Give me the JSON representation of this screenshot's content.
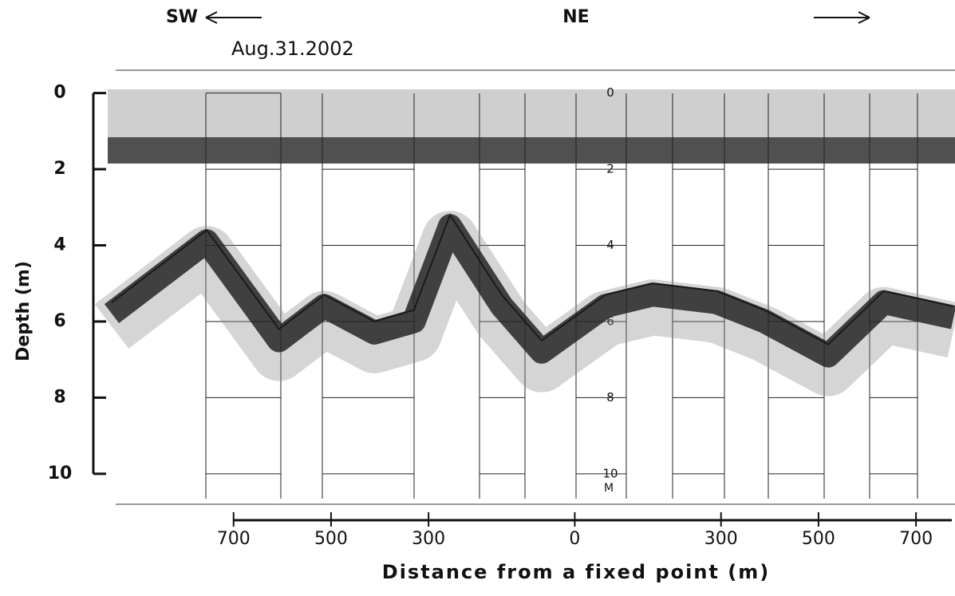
{
  "chart_data": {
    "type": "line",
    "title": "Aug.31.2002",
    "left_direction": "SW",
    "right_direction": "NE",
    "x_label": "Distance from a fixed point (m)",
    "y_label": "Depth (m)",
    "depth_unit": "M",
    "x": [
      -950,
      -755,
      -607,
      -514,
      -411,
      -330,
      -256,
      -150,
      -68,
      63,
      160,
      291,
      389,
      520,
      634,
      777
    ],
    "series": [
      {
        "color": "#1a1a1a",
        "values": [
          5.5,
          3.6,
          6.2,
          5.3,
          6.0,
          5.7,
          3.2,
          5.3,
          6.5,
          5.3,
          5.0,
          5.2,
          5.7,
          6.6,
          5.2,
          5.6
        ]
      }
    ],
    "xlim": [
      -950,
      780
    ],
    "xticks": [
      {
        "value": -700,
        "label": "700"
      },
      {
        "value": -500,
        "label": "500"
      },
      {
        "value": -300,
        "label": "300"
      },
      0,
      300,
      500,
      700
    ],
    "ylim": [
      10.8,
      -0.6
    ],
    "yticks": [
      0,
      2,
      4,
      6,
      8,
      10
    ],
    "grid": true
  }
}
